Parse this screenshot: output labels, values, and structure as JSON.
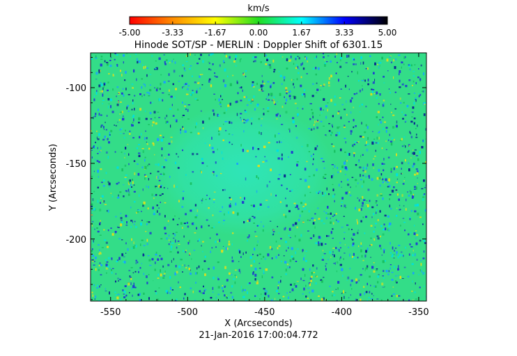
{
  "chart_data": {
    "type": "heatmap",
    "title": "Hinode SOT/SP - MERLIN : Doppler Shift of 6301.15",
    "xlabel": "X (Arcseconds)",
    "ylabel": "Y (Arcseconds)",
    "date_label": "21-Jan-2016 17:00:04.772",
    "xlim": [
      -563,
      -345
    ],
    "ylim": [
      -241,
      -77
    ],
    "x_ticks": [
      -550,
      -500,
      -450,
      -400,
      -350
    ],
    "x_tick_labels": [
      "-550",
      "-500",
      "-450",
      "-400",
      "-350"
    ],
    "y_ticks": [
      -100,
      -150,
      -200
    ],
    "y_tick_labels": [
      "-100",
      "-150",
      "-200"
    ],
    "colorbar": {
      "label": "km/s",
      "range": [
        -5.0,
        5.0
      ],
      "ticks": [
        -5.0,
        -3.33,
        -1.67,
        0.0,
        1.67,
        3.33,
        5.0
      ],
      "tick_labels": [
        "-5.00",
        "-3.33",
        "-1.67",
        "0.00",
        "1.67",
        "3.33",
        "5.00"
      ],
      "colormap": [
        "#ff0000",
        "#ff8c00",
        "#ffff00",
        "#22dd22",
        "#00ffff",
        "#0000ff",
        "#000000"
      ]
    },
    "field_description_colors": {
      "background": "#33dd88",
      "quiet_center": "#22e0b0",
      "speckle_blue": "#2040d0",
      "speckle_yellow": "#d8e020"
    }
  }
}
